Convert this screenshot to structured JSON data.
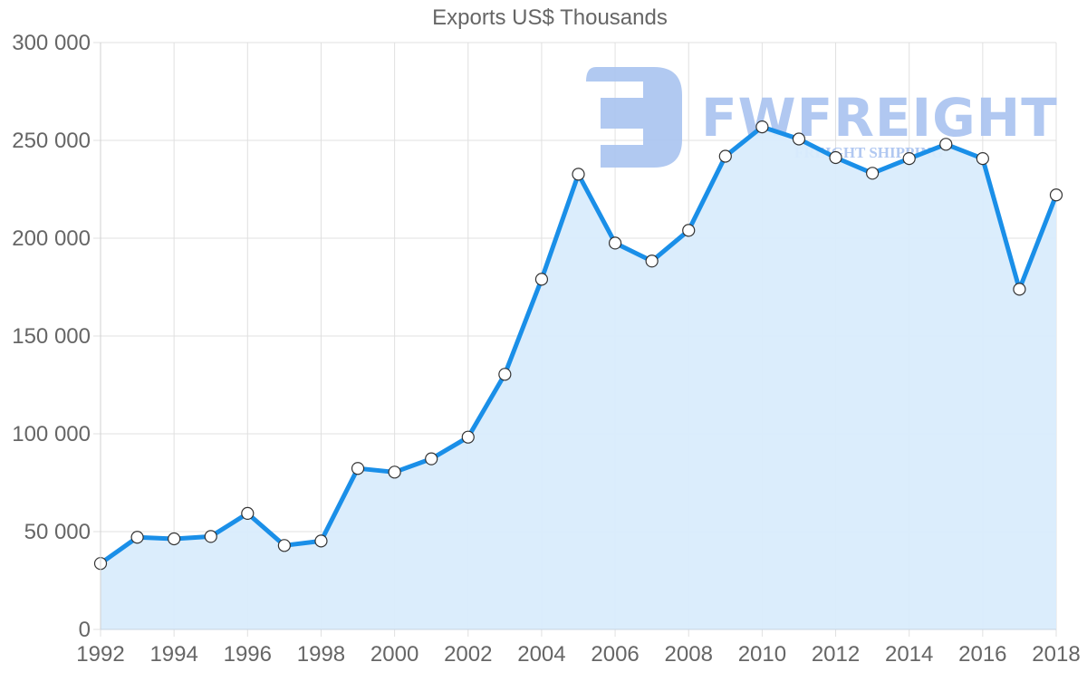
{
  "chart_data": {
    "type": "area",
    "title": "Exports US$ Thousands",
    "xlabel": "",
    "ylabel": "",
    "x": [
      1992,
      1993,
      1994,
      1995,
      1996,
      1997,
      1998,
      1999,
      2000,
      2001,
      2002,
      2003,
      2004,
      2005,
      2006,
      2007,
      2008,
      2009,
      2010,
      2011,
      2012,
      2013,
      2014,
      2015,
      2016,
      2017,
      2018
    ],
    "series": [
      {
        "name": "Exports",
        "values": [
          33700,
          47100,
          46300,
          47500,
          59300,
          42900,
          45200,
          82300,
          80400,
          87200,
          98300,
          130400,
          179000,
          232700,
          197500,
          188300,
          204000,
          241900,
          256900,
          250700,
          241200,
          233200,
          240700,
          248000,
          240700,
          173900,
          222100
        ]
      }
    ],
    "ylim": [
      0,
      300000
    ],
    "y_ticks": [
      "0",
      "50 000",
      "100 000",
      "150 000",
      "200 000",
      "250 000",
      "300 000"
    ],
    "y_tick_values": [
      0,
      50000,
      100000,
      150000,
      200000,
      250000,
      300000
    ],
    "x_ticks": [
      "1992",
      "1994",
      "1996",
      "1998",
      "2000",
      "2002",
      "2004",
      "2006",
      "2008",
      "2010",
      "2012",
      "2014",
      "2016",
      "2018"
    ],
    "grid": true,
    "legend": "none",
    "colors": {
      "line": "#1a8fe8",
      "fill": "#d9ecfc",
      "marker_fill": "#ffffff",
      "marker_stroke": "#333333",
      "grid": "#e0e0e0",
      "text": "#666666"
    }
  },
  "watermark": {
    "brand": "FWFREIGHT",
    "tagline": "FREIGHT SHIPPING",
    "color": "#a9c3f0"
  }
}
